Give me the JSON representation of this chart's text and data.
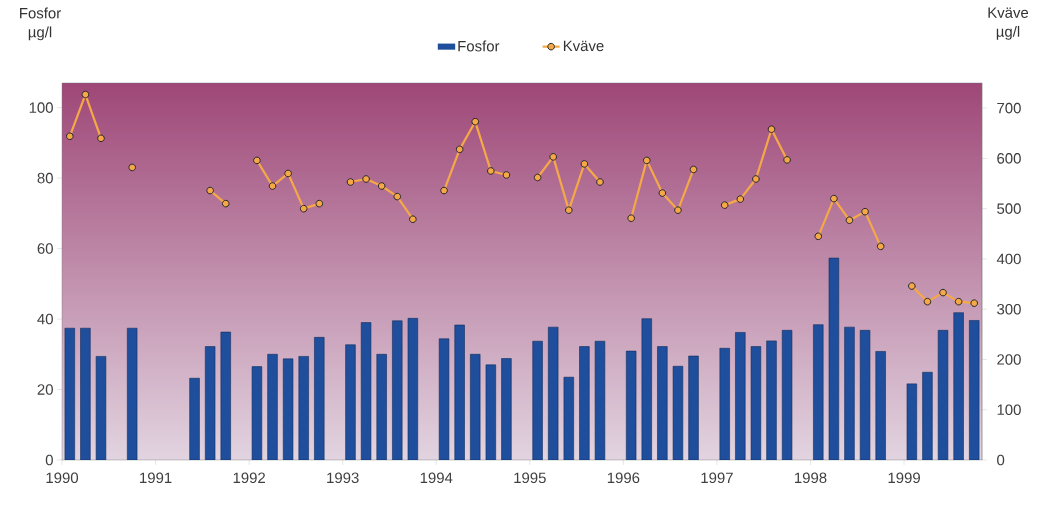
{
  "chart_data": {
    "type": "bar",
    "ylabel": "Fosfor µg/l",
    "y2label": "Kväve µg/l",
    "x": [
      "1990-02",
      "1990-04",
      "1990-06",
      "1990-08",
      "1990-10",
      "1990-12",
      "1991-02",
      "1991-04",
      "1991-06",
      "1991-08",
      "1991-10",
      "1991-12",
      "1992-02",
      "1992-04",
      "1992-06",
      "1992-08",
      "1992-10",
      "1992-12",
      "1993-02",
      "1993-04",
      "1993-06",
      "1993-08",
      "1993-10",
      "1993-12",
      "1994-02",
      "1994-04",
      "1994-06",
      "1994-08",
      "1994-10",
      "1994-12",
      "1995-02",
      "1995-04",
      "1995-06",
      "1995-08",
      "1995-10",
      "1995-12",
      "1996-02",
      "1996-04",
      "1996-06",
      "1996-08",
      "1996-10",
      "1996-12",
      "1997-02",
      "1997-04",
      "1997-06",
      "1997-08",
      "1997-10",
      "1997-12",
      "1998-02",
      "1998-04",
      "1998-06",
      "1998-08",
      "1998-10",
      "1998-12",
      "1999-02",
      "1999-04",
      "1999-06",
      "1999-08",
      "1999-10"
    ],
    "series": [
      {
        "name": "Fosfor",
        "color": "#1f4e9c",
        "values": [
          37.4,
          37.4,
          29.4,
          null,
          37.4,
          null,
          null,
          null,
          23.2,
          32.2,
          36.3,
          null,
          26.5,
          30,
          28.7,
          29.4,
          34.8,
          null,
          32.7,
          39,
          30,
          39.5,
          40.2,
          null,
          34.4,
          38.3,
          30,
          27,
          28.8,
          null,
          33.7,
          37.7,
          23.5,
          32.2,
          33.7,
          null,
          30.9,
          40.1,
          32.2,
          26.6,
          29.5,
          null,
          31.7,
          36.2,
          32.2,
          33.8,
          36.8,
          null,
          38.4,
          57.3,
          37.7,
          36.8,
          30.8,
          null,
          21.6,
          24.9,
          36.8,
          41.8,
          39.6
        ]
      },
      {
        "name": "Kväve",
        "type": "line",
        "axis": "y2",
        "color": "#f5a847",
        "marker": "circle",
        "line_style": "solid",
        "values": [
          644,
          727,
          640,
          null,
          582,
          null,
          null,
          null,
          null,
          536,
          510,
          null,
          596,
          545,
          570,
          500,
          510,
          null,
          553,
          559,
          545,
          524,
          479,
          null,
          536,
          618,
          673,
          575,
          567,
          null,
          562,
          603,
          497,
          589,
          553,
          null,
          481,
          596,
          531,
          497,
          578,
          null,
          507,
          519,
          559,
          658,
          597,
          null,
          445,
          520,
          477,
          494,
          425,
          null,
          346,
          315,
          333,
          315,
          312
        ]
      }
    ],
    "xlim": [
      "1990-01",
      "1999-11"
    ],
    "xticks": [
      {
        "value": "1990-01",
        "label": "1990"
      },
      {
        "value": "1991-01",
        "label": "1991"
      },
      {
        "value": "1992-01",
        "label": "1992"
      },
      {
        "value": "1993-01",
        "label": "1993"
      },
      {
        "value": "1994-01",
        "label": "1994"
      },
      {
        "value": "1995-01",
        "label": "1995"
      },
      {
        "value": "1996-01",
        "label": "1996"
      },
      {
        "value": "1997-01",
        "label": "1997"
      },
      {
        "value": "1998-01",
        "label": "1998"
      },
      {
        "value": "1999-01",
        "label": "1999"
      }
    ],
    "ylim": [
      0,
      107
    ],
    "yticks": [
      0,
      20,
      40,
      60,
      80,
      100
    ],
    "y2lim": [
      0,
      750
    ],
    "y2ticks": [
      0,
      100,
      200,
      300,
      400,
      500,
      600,
      700
    ],
    "legend": "top",
    "grid": false
  }
}
